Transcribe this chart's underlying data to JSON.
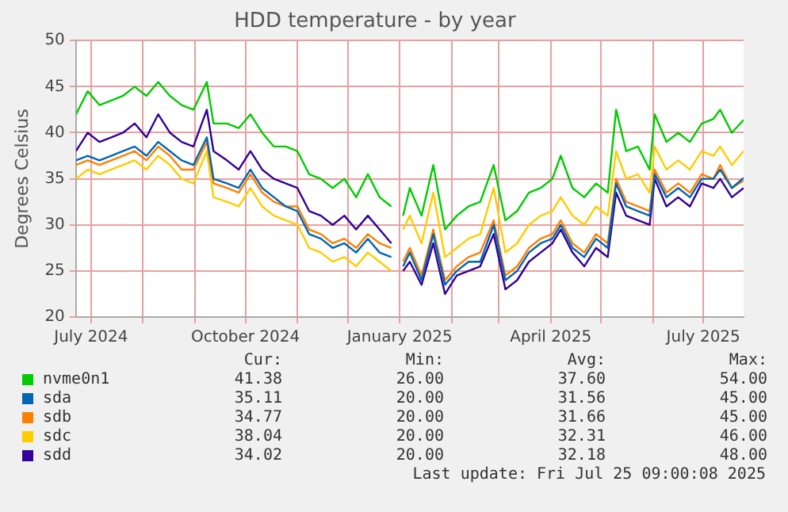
{
  "chart_data": {
    "type": "line",
    "title": "HDD temperature - by year",
    "ylabel": "Degrees Celsius",
    "x": [
      "2024-06-22",
      "2024-06-29",
      "2024-07-06",
      "2024-07-13",
      "2024-07-20",
      "2024-07-27",
      "2024-08-03",
      "2024-08-10",
      "2024-08-17",
      "2024-08-24",
      "2024-08-31",
      "2024-09-08",
      "2024-09-12",
      "2024-09-20",
      "2024-09-27",
      "2024-10-04",
      "2024-10-11",
      "2024-10-18",
      "2024-10-25",
      "2024-11-01",
      "2024-11-08",
      "2024-11-15",
      "2024-11-22",
      "2024-11-29",
      "2024-12-06",
      "2024-12-13",
      "2024-12-20",
      "2024-12-27",
      "2024-12-31",
      "2025-01-03",
      "2025-01-07",
      "2025-01-14",
      "2025-01-21",
      "2025-01-28",
      "2025-02-04",
      "2025-02-11",
      "2025-02-18",
      "2025-02-26",
      "2025-03-05",
      "2025-03-12",
      "2025-03-19",
      "2025-03-26",
      "2025-04-02",
      "2025-04-07",
      "2025-04-14",
      "2025-04-21",
      "2025-04-28",
      "2025-05-05",
      "2025-05-10",
      "2025-05-16",
      "2025-05-23",
      "2025-05-30",
      "2025-06-02",
      "2025-06-09",
      "2025-06-16",
      "2025-06-23",
      "2025-06-30",
      "2025-07-07",
      "2025-07-11",
      "2025-07-18",
      "2025-07-25"
    ],
    "series": [
      {
        "name": "nvme0n1",
        "color": "#00cc00",
        "values": [
          42,
          44.5,
          43,
          43.5,
          44,
          45,
          44,
          45.5,
          44,
          43,
          42.5,
          45.5,
          41,
          41,
          40.5,
          42,
          40,
          38.5,
          38.5,
          38,
          35.5,
          35,
          34,
          35,
          33,
          35.5,
          33,
          32,
          null,
          31,
          34,
          31,
          36.5,
          29.5,
          31,
          32,
          32.5,
          36.5,
          30.5,
          31.5,
          33.5,
          34,
          35,
          37.5,
          34,
          33,
          34.5,
          33.5,
          42.5,
          38,
          38.5,
          36,
          42,
          39,
          40,
          39,
          41,
          41.5,
          42.5,
          40,
          41.4
        ]
      },
      {
        "name": "sda",
        "color": "#0066b3",
        "values": [
          37,
          37.5,
          37,
          37.5,
          38,
          38.5,
          37.5,
          39,
          38,
          37,
          36.5,
          39.5,
          35,
          34.5,
          34,
          36,
          34,
          33,
          32,
          31.5,
          29,
          28.5,
          27.5,
          28,
          27,
          28.5,
          27,
          26.5,
          null,
          25.5,
          27,
          24,
          29,
          23.5,
          25,
          26,
          26,
          30,
          24,
          25,
          27,
          28,
          28.5,
          30,
          27.5,
          26.5,
          28.5,
          27.5,
          34.5,
          32,
          31.5,
          31,
          35.5,
          33,
          34,
          33,
          35,
          35,
          36,
          34,
          35.1
        ]
      },
      {
        "name": "sdb",
        "color": "#ff8000",
        "values": [
          36.5,
          37,
          36.5,
          37,
          37.5,
          38,
          37,
          38.5,
          37.5,
          36,
          36,
          39,
          34.5,
          34,
          33.5,
          35.5,
          33.5,
          32.5,
          32,
          32,
          29.5,
          29,
          28,
          28.5,
          27.5,
          29,
          28,
          27.5,
          null,
          26,
          27.5,
          24.5,
          29.5,
          24,
          25.5,
          26.5,
          27,
          30.5,
          24.5,
          25.5,
          27.5,
          28.5,
          29,
          30.5,
          28,
          27,
          29,
          28,
          35,
          32.5,
          32,
          31.5,
          36,
          33.5,
          34.5,
          33.5,
          35.5,
          35,
          36.5,
          34,
          34.8
        ]
      },
      {
        "name": "sdc",
        "color": "#ffcc00",
        "values": [
          35,
          36,
          35.5,
          36,
          36.5,
          37,
          36,
          37.5,
          36.5,
          35,
          34.5,
          38,
          33,
          32.5,
          32,
          34,
          32,
          31,
          30.5,
          30,
          27.5,
          27,
          26,
          26.5,
          25.5,
          27,
          26,
          25,
          null,
          29.5,
          31,
          28,
          33.5,
          26.5,
          27.5,
          28.5,
          29,
          34,
          27,
          28,
          30,
          31,
          31.5,
          33,
          31,
          30,
          32,
          31,
          38,
          35,
          35.5,
          33.5,
          38.5,
          36,
          37,
          36,
          38,
          37.5,
          38.5,
          36.5,
          38
        ]
      },
      {
        "name": "sdd",
        "color": "#330099",
        "values": [
          38,
          40,
          39,
          39.5,
          40,
          41,
          39.5,
          42,
          40,
          39,
          38.5,
          42.5,
          38,
          37,
          36,
          38,
          36,
          35,
          34.5,
          34,
          31.5,
          31,
          30,
          31,
          29.5,
          31,
          29.5,
          28,
          null,
          25,
          26,
          23.5,
          28,
          22.5,
          24.5,
          25,
          25.5,
          29,
          23,
          24,
          26,
          27,
          28,
          29.5,
          27,
          25.5,
          27.5,
          26.5,
          33.5,
          31,
          30.5,
          30,
          35,
          32,
          33,
          32,
          34.5,
          34,
          35,
          33,
          34
        ]
      }
    ],
    "xlim": [
      "2024-06-22",
      "2025-07-25"
    ],
    "xticks": [
      {
        "value": "2024-07-01",
        "label": "July 2024"
      },
      {
        "value": "2024-08-01",
        "label": null
      },
      {
        "value": "2024-09-01",
        "label": null
      },
      {
        "value": "2024-10-01",
        "label": "October 2024"
      },
      {
        "value": "2024-11-01",
        "label": null
      },
      {
        "value": "2024-12-01",
        "label": null
      },
      {
        "value": "2025-01-01",
        "label": "January 2025"
      },
      {
        "value": "2025-02-01",
        "label": null
      },
      {
        "value": "2025-03-01",
        "label": null
      },
      {
        "value": "2025-04-01",
        "label": "April 2025"
      },
      {
        "value": "2025-05-01",
        "label": null
      },
      {
        "value": "2025-06-01",
        "label": null
      },
      {
        "value": "2025-07-01",
        "label": "July 2025"
      }
    ],
    "ylim": [
      20,
      50
    ],
    "yticks": [
      20,
      25,
      30,
      35,
      40,
      45,
      50
    ],
    "grid": true,
    "legend": "bottom",
    "marker": "none",
    "line_style": "solid",
    "annotations": [
      "Cur:",
      "Min:",
      "Avg:",
      "Max:",
      "41.38",
      "26.00",
      "37.60",
      "54.00",
      "35.11",
      "20.00",
      "31.56",
      "45.00",
      "34.77",
      "20.00",
      "31.66",
      "45.00",
      "38.04",
      "20.00",
      "32.31",
      "46.00",
      "34.02",
      "20.00",
      "32.18",
      "48.00",
      "Last update: Fri Jul 25 09:00:08 2025"
    ]
  }
}
